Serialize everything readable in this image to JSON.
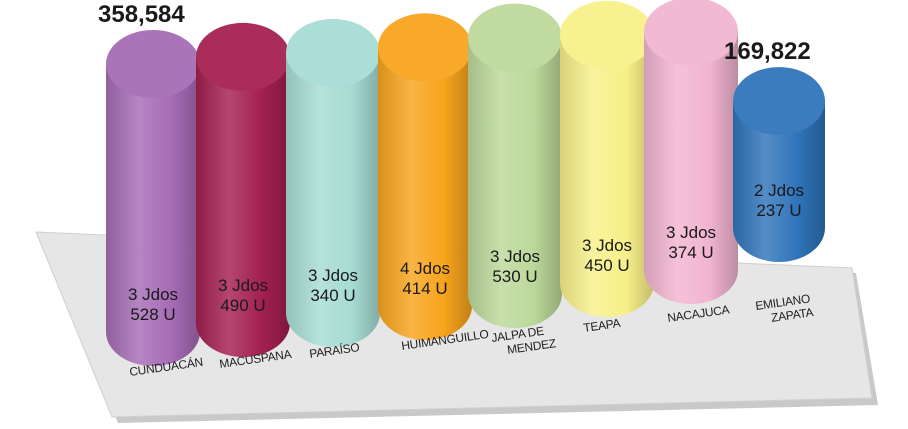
{
  "chart_data": {
    "type": "bar",
    "categories": [
      "CUNDUACÁN",
      "MACUSPANA",
      "PARAÍSO",
      "HUIMANGUILLO",
      "JALPA DE MENDEZ",
      "TEAPA",
      "NACAJUCA",
      "EMILIANO ZAPATA"
    ],
    "series": [
      {
        "values": [
          358584,
          356000,
          348000,
          346000,
          343000,
          332000,
          319000,
          169822
        ],
        "bar_labels": [
          [
            "3 Jdos",
            "528 U"
          ],
          [
            "3 Jdos",
            "490 U"
          ],
          [
            "3 Jdos",
            "340 U"
          ],
          [
            "4 Jdos",
            "414 U"
          ],
          [
            "3 Jdos",
            "530 U"
          ],
          [
            "3 Jdos",
            "450 U"
          ],
          [
            "3 Jdos",
            "374 U"
          ],
          [
            "2 Jdos",
            "237 U"
          ]
        ]
      }
    ],
    "annotations": [
      {
        "category": "CUNDUACÁN",
        "text": "358,584"
      },
      {
        "category": "EMILIANO ZAPATA",
        "text": "169,822"
      }
    ],
    "colors": [
      "#a56bb5",
      "#a31f50",
      "#a6dcd3",
      "#f8a41c",
      "#bcd89a",
      "#f7f089",
      "#f1b4d0",
      "#2f74ba"
    ],
    "platform_color": "#e6e6e6",
    "title": "",
    "xlabel": "",
    "ylabel": "",
    "grid": false,
    "legend": "none"
  }
}
